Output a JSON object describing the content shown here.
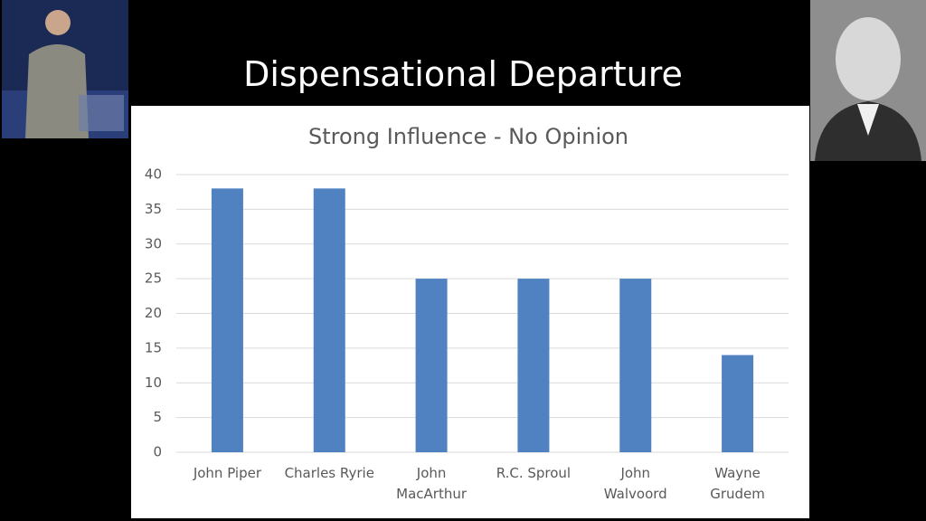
{
  "slide_title": "Dispensational Departure",
  "chart_data": {
    "type": "bar",
    "title": "Strong Influence - No Opinion",
    "categories": [
      "John Piper",
      "Charles Ryrie",
      "John\nMacArthur",
      "R.C. Sproul",
      "John\nWalvoord",
      "Wayne\nGrudem"
    ],
    "values": [
      38,
      38,
      25,
      25,
      25,
      14
    ],
    "color": "#5082c2",
    "ylim": [
      0,
      40
    ],
    "yticks": [
      0,
      5,
      10,
      15,
      20,
      25,
      30,
      35,
      40
    ],
    "grid": true
  }
}
